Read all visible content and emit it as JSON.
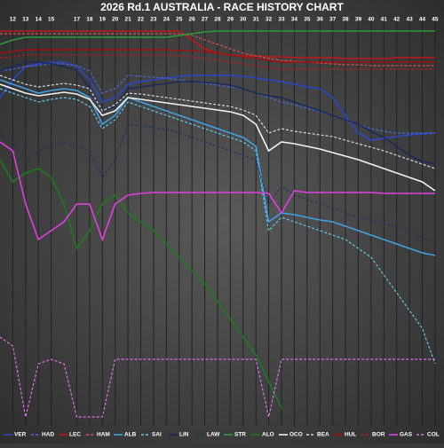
{
  "chart_data": {
    "type": "line",
    "title": "2026 Rd.1 AUSTRALIA - RACE HISTORY CHART",
    "x": [
      11,
      12,
      13,
      14,
      15,
      16,
      17,
      18,
      19,
      20,
      21,
      22,
      23,
      24,
      25,
      26,
      27,
      28,
      29,
      30,
      31,
      32,
      33,
      34,
      35,
      36,
      37,
      38,
      39,
      40,
      41,
      42,
      43,
      44,
      45
    ],
    "xlim": [
      11,
      45.7
    ],
    "xticks": [
      12,
      13,
      14,
      15,
      17,
      18,
      19,
      20,
      21,
      22,
      23,
      24,
      25,
      26,
      27,
      28,
      29,
      30,
      31,
      32,
      33,
      34,
      35,
      36,
      37,
      38,
      39,
      40,
      41,
      42,
      43,
      44,
      45
    ],
    "ylim": [
      0,
      450
    ],
    "y_inverted": true,
    "grid": true,
    "series": [
      {
        "name": "VER",
        "color": "#2a48c8",
        "dash": false,
        "values": [
          80,
          60,
          45,
          42,
          40,
          40,
          45,
          60,
          85,
          80,
          65,
          62,
          60,
          58,
          56,
          55,
          55,
          55,
          55,
          56,
          58,
          60,
          62,
          65,
          68,
          70,
          80,
          100,
          120,
          128,
          126,
          124,
          122,
          121,
          120
        ]
      },
      {
        "name": "HAD",
        "color": "#4a6ad8",
        "dash": true,
        "values": [
          50,
          48,
          45,
          44,
          42,
          42,
          44,
          50,
          75,
          70,
          55,
          56,
          57,
          58,
          60,
          62,
          64,
          66,
          68,
          70,
          75,
          80,
          85,
          88,
          92,
          96,
          100,
          104,
          110,
          115,
          118,
          120,
          120,
          120,
          120
        ]
      },
      {
        "name": "LEC",
        "color": "#c01818",
        "dash": false,
        "values": [
          5,
          5,
          5,
          5,
          5,
          5,
          5,
          5,
          5,
          5,
          5,
          5,
          5,
          5,
          5,
          15,
          25,
          30,
          32,
          33,
          33,
          34,
          34,
          35,
          35,
          35,
          35,
          36,
          36,
          36,
          36,
          35,
          35,
          35,
          35
        ]
      },
      {
        "name": "HAM",
        "color": "#e05050",
        "dash": true,
        "values": [
          8,
          8,
          8,
          8,
          8,
          8,
          8,
          8,
          8,
          8,
          8,
          8,
          8,
          8,
          8,
          10,
          15,
          20,
          25,
          30,
          33,
          36,
          38,
          39,
          40,
          41,
          42,
          43,
          43,
          44,
          44,
          44,
          44,
          44,
          44
        ]
      },
      {
        "name": "ALB",
        "color": "#40a0e0",
        "dash": false,
        "values": [
          60,
          65,
          70,
          75,
          72,
          70,
          72,
          80,
          110,
          100,
          80,
          85,
          90,
          95,
          100,
          105,
          110,
          115,
          120,
          125,
          135,
          220,
          210,
          212,
          215,
          218,
          220,
          225,
          230,
          235,
          240,
          245,
          250,
          255,
          258
        ]
      },
      {
        "name": "SAI",
        "color": "#60c8e8",
        "dash": true,
        "values": [
          70,
          75,
          80,
          85,
          82,
          80,
          82,
          90,
          115,
          105,
          85,
          90,
          95,
          100,
          105,
          110,
          115,
          120,
          125,
          130,
          140,
          230,
          215,
          220,
          225,
          230,
          235,
          240,
          250,
          260,
          280,
          300,
          320,
          340,
          380
        ]
      },
      {
        "name": "LIN",
        "color": "#1a2a5a",
        "dash": false,
        "values": [
          50,
          45,
          40,
          40,
          42,
          45,
          50,
          70,
          95,
          90,
          70,
          68,
          66,
          64,
          62,
          62,
          63,
          64,
          66,
          70,
          75,
          78,
          80,
          85,
          90,
          95,
          100,
          105,
          110,
          118,
          125,
          135,
          145,
          152,
          155
        ]
      },
      {
        "name": "LAW",
        "color": "#22325e",
        "dash": true,
        "values": [
          120,
          130,
          150,
          140,
          135,
          130,
          135,
          140,
          170,
          150,
          110,
          112,
          114,
          116,
          120,
          125,
          130,
          135,
          140,
          145,
          150,
          200,
          180,
          190,
          195,
          200,
          205,
          210,
          215,
          218,
          222,
          226,
          230,
          238,
          245
        ]
      },
      {
        "name": "STR",
        "color": "#2a9a3a",
        "dash": false,
        "values": [
          20,
          15,
          12,
          12,
          12,
          12,
          12,
          12,
          12,
          12,
          12,
          12,
          12,
          12,
          10,
          8,
          6,
          5,
          5,
          5,
          5,
          5,
          5,
          5,
          5,
          5,
          5,
          5,
          5,
          5,
          5,
          5,
          5,
          5,
          5
        ]
      },
      {
        "name": "ALO",
        "color": "#1f7a1f",
        "dash": false,
        "values": [
          150,
          175,
          165,
          160,
          170,
          200,
          250,
          230,
          200,
          190,
          210,
          220,
          230,
          245,
          260,
          275,
          290,
          310,
          330,
          350,
          370,
          400,
          430,
          null,
          null,
          null,
          null,
          null,
          null,
          null,
          null,
          null,
          null,
          null,
          null
        ]
      },
      {
        "name": "OCO",
        "color": "#f2f2f2",
        "dash": false,
        "values": [
          65,
          70,
          75,
          78,
          76,
          74,
          76,
          82,
          100,
          95,
          80,
          82,
          84,
          86,
          88,
          90,
          92,
          94,
          96,
          100,
          110,
          140,
          130,
          132,
          135,
          138,
          142,
          146,
          150,
          155,
          160,
          165,
          170,
          175,
          185
        ]
      },
      {
        "name": "BEA",
        "color": "#d8d8d8",
        "dash": true,
        "values": [
          55,
          60,
          65,
          68,
          66,
          64,
          66,
          70,
          95,
          88,
          75,
          76,
          78,
          80,
          82,
          84,
          86,
          88,
          90,
          94,
          100,
          120,
          115,
          118,
          120,
          122,
          124,
          128,
          132,
          136,
          140,
          145,
          150,
          155,
          160
        ]
      },
      {
        "name": "HUL",
        "color": "#a01010",
        "dash": false,
        "values": [
          30,
          28,
          26,
          26,
          26,
          26,
          26,
          26,
          26,
          26,
          26,
          26,
          26,
          26,
          27,
          27,
          28,
          30,
          32,
          34,
          36,
          38,
          40,
          40,
          40,
          40,
          40,
          40,
          40,
          40,
          40,
          40,
          40,
          40,
          40
        ]
      },
      {
        "name": "BOR",
        "color": "#b02020",
        "dash": true,
        "values": [
          35,
          34,
          32,
          32,
          32,
          32,
          32,
          32,
          32,
          32,
          32,
          32,
          32,
          32,
          33,
          34,
          36,
          38,
          40,
          42,
          44,
          46,
          48,
          48,
          48,
          48,
          48,
          48,
          48,
          48,
          48,
          48,
          48,
          48,
          48
        ]
      },
      {
        "name": "GAS",
        "color": "#e040e0",
        "dash": false,
        "values": [
          130,
          140,
          200,
          240,
          230,
          220,
          200,
          200,
          240,
          200,
          190,
          188,
          187,
          187,
          187,
          187,
          187,
          187,
          187,
          187,
          187,
          188,
          210,
          185,
          187,
          187,
          187,
          187,
          187,
          187,
          188,
          188,
          188,
          188,
          188
        ]
      },
      {
        "name": "COL",
        "color": "#e070e8",
        "dash": true,
        "values": [
          350,
          360,
          440,
          380,
          375,
          380,
          440,
          440,
          440,
          375,
          375,
          375,
          375,
          375,
          375,
          375,
          375,
          375,
          375,
          375,
          375,
          440,
          375,
          375,
          375,
          375,
          375,
          375,
          375,
          375,
          375,
          375,
          375,
          375,
          375
        ]
      }
    ]
  }
}
